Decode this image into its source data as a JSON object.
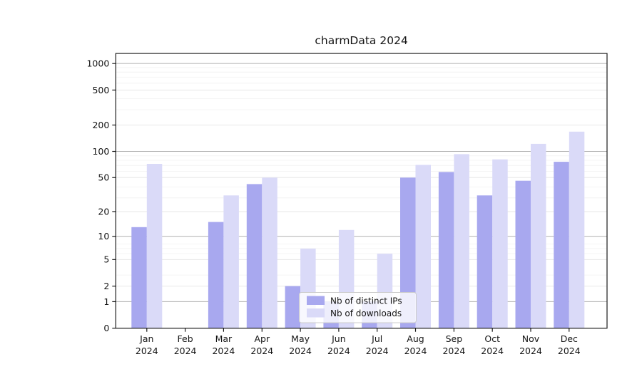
{
  "chart_data": {
    "type": "bar",
    "title": "charmData 2024",
    "xlabel": "",
    "ylabel": "",
    "scale": "log10(value+1)",
    "categories": [
      "Jan",
      "Feb",
      "Mar",
      "Apr",
      "May",
      "Jun",
      "Jul",
      "Aug",
      "Sep",
      "Oct",
      "Nov",
      "Dec"
    ],
    "category_year": "2024",
    "series": [
      {
        "name": "Nb of distinct IPs",
        "color": "#a8a8ef",
        "values": [
          13,
          0,
          15,
          42,
          2,
          1,
          1,
          50,
          58,
          31,
          46,
          76
        ]
      },
      {
        "name": "Nb of downloads",
        "color": "#dadaf8",
        "values": [
          72,
          0,
          31,
          50,
          7,
          12,
          6,
          70,
          93,
          81,
          122,
          168
        ]
      }
    ],
    "y_ticks": [
      0,
      1,
      2,
      5,
      10,
      20,
      50,
      100,
      200,
      500,
      1000
    ],
    "ylim": [
      0,
      1300
    ],
    "grid": true,
    "legend_position": "lower-center",
    "legend_background_opacity": 0.8,
    "colors": {
      "major_grid": "#b0b0b0",
      "labeled_grid": "#e7e7e7",
      "minor_grid": "#f4f4f4",
      "frame": "#1a1a1a",
      "legend_border": "#cccccc"
    }
  }
}
